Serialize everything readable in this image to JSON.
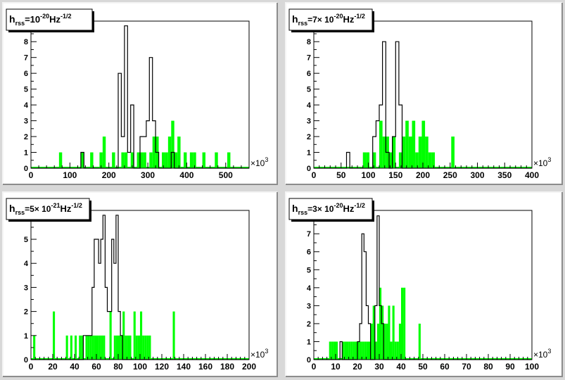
{
  "colors": {
    "canvas": "#d8d8d8",
    "pad": "#ffffff",
    "green": "#00ff00",
    "black": "#000000"
  },
  "chart_data": [
    {
      "type": "bar",
      "title": {
        "main": "h",
        "sub": "rss",
        "eq": "=10",
        "exp": "-20",
        "unit": "Hz",
        "unit_exp": "-1/2"
      },
      "x_exponent_label": {
        "base": "×10",
        "exp": "3"
      },
      "xlim": [
        0,
        560
      ],
      "ylim": [
        0,
        9.3
      ],
      "xticks": [
        0,
        100,
        200,
        300,
        400,
        500
      ],
      "yticks": [
        0,
        1,
        2,
        3,
        4,
        5,
        6,
        7,
        8,
        9
      ],
      "bin_width": 8,
      "series": [
        {
          "name": "",
          "color": "#000000",
          "style": "step",
          "bins": [
            [
              128,
              1
            ],
            [
              224,
              6
            ],
            [
              232,
              2
            ],
            [
              240,
              9
            ],
            [
              248,
              1
            ],
            [
              256,
              4
            ],
            [
              280,
              2
            ],
            [
              288,
              2
            ],
            [
              296,
              3
            ],
            [
              304,
              7
            ],
            [
              312,
              3
            ],
            [
              320,
              1
            ],
            [
              360,
              1
            ]
          ]
        },
        {
          "name": "",
          "color": "#00ff00",
          "style": "filled",
          "bins": [
            [
              72,
              1
            ],
            [
              128,
              1
            ],
            [
              152,
              1
            ],
            [
              176,
              1
            ],
            [
              184,
              2
            ],
            [
              208,
              1
            ],
            [
              232,
              1
            ],
            [
              240,
              1
            ],
            [
              256,
              1
            ],
            [
              272,
              1
            ],
            [
              280,
              1
            ],
            [
              288,
              1
            ],
            [
              304,
              1
            ],
            [
              312,
              2
            ],
            [
              320,
              2
            ],
            [
              336,
              1
            ],
            [
              344,
              1
            ],
            [
              352,
              2
            ],
            [
              360,
              3
            ],
            [
              368,
              1
            ],
            [
              376,
              2
            ],
            [
              392,
              1
            ],
            [
              408,
              1
            ],
            [
              416,
              1
            ],
            [
              440,
              1
            ],
            [
              472,
              1
            ],
            [
              504,
              1
            ]
          ]
        }
      ]
    },
    {
      "type": "bar",
      "title": {
        "main": "h",
        "sub": "rss",
        "eq": "=7× 10",
        "exp": "-20",
        "unit": "Hz",
        "unit_exp": "-1/2"
      },
      "x_exponent_label": {
        "base": "×10",
        "exp": "3"
      },
      "xlim": [
        0,
        400
      ],
      "ylim": [
        0,
        9.3
      ],
      "xticks": [
        0,
        50,
        100,
        150,
        200,
        250,
        300,
        350,
        400
      ],
      "yticks": [
        0,
        1,
        2,
        3,
        4,
        5,
        6,
        7,
        8,
        9
      ],
      "bin_width": 6,
      "series": [
        {
          "name": "",
          "color": "#000000",
          "style": "step",
          "bins": [
            [
              60,
              1
            ],
            [
              108,
              2
            ],
            [
              114,
              3
            ],
            [
              120,
              4
            ],
            [
              126,
              8
            ],
            [
              132,
              1
            ],
            [
              144,
              2
            ],
            [
              150,
              8
            ],
            [
              156,
              4
            ]
          ]
        },
        {
          "name": "",
          "color": "#00ff00",
          "style": "filled",
          "bins": [
            [
              90,
              1
            ],
            [
              96,
              1
            ],
            [
              108,
              1
            ],
            [
              120,
              3
            ],
            [
              126,
              2
            ],
            [
              132,
              2
            ],
            [
              138,
              1
            ],
            [
              144,
              2
            ],
            [
              156,
              1
            ],
            [
              162,
              2
            ],
            [
              168,
              3
            ],
            [
              174,
              2
            ],
            [
              180,
              3
            ],
            [
              186,
              1
            ],
            [
              192,
              2
            ],
            [
              198,
              3
            ],
            [
              204,
              2
            ],
            [
              210,
              1
            ],
            [
              216,
              1
            ],
            [
              252,
              2
            ]
          ]
        }
      ]
    },
    {
      "type": "bar",
      "title": {
        "main": "h",
        "sub": "rss",
        "eq": "=5× 10",
        "exp": "-21",
        "unit": "Hz",
        "unit_exp": "-1/2"
      },
      "x_exponent_label": {
        "base": "×10",
        "exp": "3"
      },
      "xlim": [
        0,
        200
      ],
      "ylim": [
        0,
        6.2
      ],
      "xticks": [
        0,
        20,
        40,
        60,
        80,
        100,
        120,
        140,
        160,
        180,
        200
      ],
      "yticks": [
        0,
        1,
        2,
        3,
        4,
        5,
        6
      ],
      "bin_width": 2,
      "series": [
        {
          "name": "",
          "color": "#000000",
          "style": "step",
          "bins": [
            [
              48,
              1
            ],
            [
              50,
              1
            ],
            [
              52,
              1
            ],
            [
              54,
              1
            ],
            [
              56,
              3
            ],
            [
              58,
              5
            ],
            [
              60,
              5
            ],
            [
              62,
              4
            ],
            [
              64,
              5
            ],
            [
              66,
              6
            ],
            [
              68,
              3
            ],
            [
              70,
              2
            ],
            [
              72,
              2
            ],
            [
              74,
              5
            ],
            [
              76,
              4
            ],
            [
              78,
              6
            ],
            [
              80,
              2
            ],
            [
              82,
              1
            ]
          ]
        },
        {
          "name": "",
          "color": "#00ff00",
          "style": "filled",
          "bins": [
            [
              2,
              1
            ],
            [
              20,
              2
            ],
            [
              32,
              1
            ],
            [
              36,
              1
            ],
            [
              40,
              1
            ],
            [
              44,
              1
            ],
            [
              46,
              1
            ],
            [
              50,
              1
            ],
            [
              52,
              1
            ],
            [
              54,
              1
            ],
            [
              56,
              1
            ],
            [
              58,
              1
            ],
            [
              60,
              1
            ],
            [
              62,
              1
            ],
            [
              64,
              1
            ],
            [
              66,
              1
            ],
            [
              72,
              2
            ],
            [
              76,
              1
            ],
            [
              78,
              1
            ],
            [
              80,
              1
            ],
            [
              82,
              1
            ],
            [
              84,
              2
            ],
            [
              86,
              1
            ],
            [
              88,
              1
            ],
            [
              90,
              1
            ],
            [
              94,
              2
            ],
            [
              96,
              1
            ],
            [
              98,
              1
            ],
            [
              100,
              2
            ],
            [
              102,
              1
            ],
            [
              104,
              1
            ],
            [
              106,
              1
            ],
            [
              108,
              1
            ],
            [
              130,
              2
            ]
          ]
        }
      ]
    },
    {
      "type": "bar",
      "title": {
        "main": "h",
        "sub": "rss",
        "eq": "=3× 10",
        "exp": "-20",
        "unit": "Hz",
        "unit_exp": "-1/2"
      },
      "x_exponent_label": {
        "base": "×10",
        "exp": "3"
      },
      "xlim": [
        0,
        100
      ],
      "ylim": [
        0,
        8.3
      ],
      "xticks": [
        0,
        10,
        20,
        30,
        40,
        50,
        60,
        70,
        80,
        90,
        100
      ],
      "yticks": [
        0,
        1,
        2,
        3,
        4,
        5,
        6,
        7,
        8
      ],
      "bin_width": 1,
      "series": [
        {
          "name": "",
          "color": "#000000",
          "style": "step",
          "bins": [
            [
              12,
              1
            ],
            [
              20,
              1
            ],
            [
              21,
              2
            ],
            [
              22,
              7
            ],
            [
              23,
              6
            ],
            [
              24,
              3
            ],
            [
              25,
              2
            ],
            [
              28,
              3
            ],
            [
              29,
              8
            ],
            [
              30,
              3
            ],
            [
              31,
              2
            ]
          ]
        },
        {
          "name": "",
          "color": "#00ff00",
          "style": "filled",
          "bins": [
            [
              7,
              1
            ],
            [
              8,
              1
            ],
            [
              9,
              1
            ],
            [
              10,
              1
            ],
            [
              13,
              1
            ],
            [
              14,
              1
            ],
            [
              15,
              1
            ],
            [
              16,
              1
            ],
            [
              17,
              1
            ],
            [
              18,
              1
            ],
            [
              19,
              1
            ],
            [
              20,
              1
            ],
            [
              21,
              1
            ],
            [
              22,
              1
            ],
            [
              23,
              1
            ],
            [
              24,
              1
            ],
            [
              25,
              1
            ],
            [
              26,
              2
            ],
            [
              27,
              3
            ],
            [
              28,
              1
            ],
            [
              29,
              2
            ],
            [
              30,
              4
            ],
            [
              31,
              3
            ],
            [
              32,
              2
            ],
            [
              33,
              2
            ],
            [
              34,
              3
            ],
            [
              35,
              1
            ],
            [
              36,
              3
            ],
            [
              37,
              1
            ],
            [
              38,
              1
            ],
            [
              39,
              2
            ],
            [
              40,
              4
            ],
            [
              41,
              4
            ],
            [
              48,
              2
            ]
          ]
        }
      ]
    }
  ]
}
